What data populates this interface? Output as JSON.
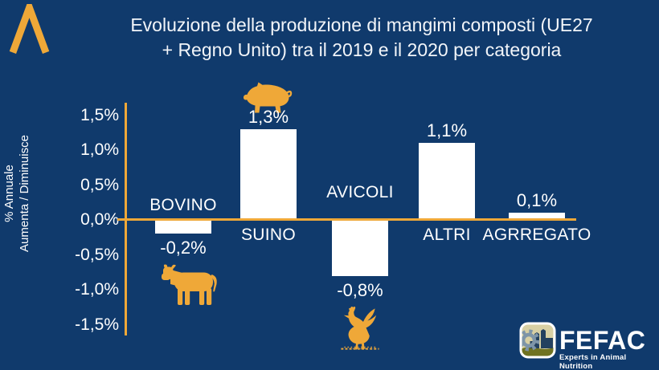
{
  "colors": {
    "background": "#103A6C",
    "gold_accent": "#EFA838",
    "bar_fill": "#FFFFFF",
    "text": "#FFFFFF"
  },
  "title": {
    "line1": "Evoluzione della produzione di mangimi composti (UE27",
    "line2": "+ Regno Unito) tra il 2019 e il 2020 per categoria"
  },
  "y_axis": {
    "title_line1": "% Annuale",
    "title_line2": "Aumenta / Diminuisce",
    "ticks": [
      "1,5%",
      "1,0%",
      "0,5%",
      "0,0%",
      "-0,5%",
      "-1,0%",
      "-1,5%"
    ]
  },
  "chart_data": {
    "type": "bar",
    "title": "Evoluzione della produzione di mangimi composti (UE27 + Regno Unito) tra il 2019 e il 2020 per categoria",
    "categories": [
      "BOVINO",
      "SUINO",
      "AVICOLI",
      "ALTRI",
      "AGRREGATO"
    ],
    "values": [
      -0.2,
      1.3,
      -0.8,
      1.1,
      0.1
    ],
    "value_labels": [
      "-0,2%",
      "1,3%",
      "-0,8%",
      "1,1%",
      "0,1%"
    ],
    "icons": [
      "cow",
      "pig",
      "rooster",
      null,
      null
    ],
    "xlabel": "",
    "ylabel": "% Annuale Aumenta / Diminuisce",
    "ylim": [
      -1.5,
      1.5
    ],
    "ytick_step": 0.5,
    "grid": false,
    "legend": false,
    "bar_color": "#FFFFFF",
    "axis_color": "#EFA838"
  },
  "branding": {
    "fefac_name": "FEFAC",
    "fefac_tagline": "Experts in Animal Nutrition"
  }
}
